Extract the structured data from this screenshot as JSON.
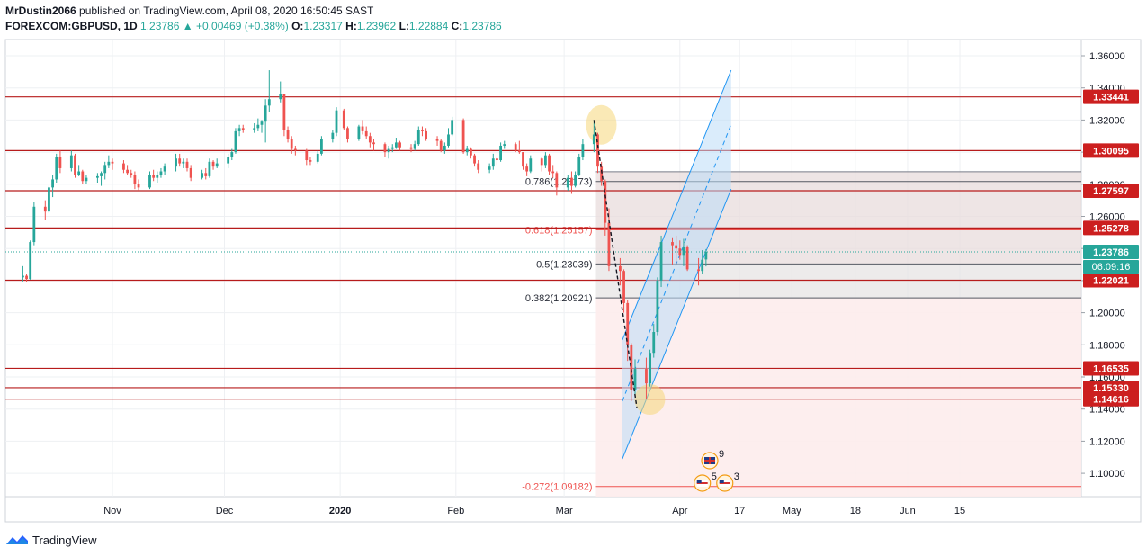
{
  "header": {
    "author": "MrDustin2066",
    "published": "published on TradingView.com, April 08, 2020 16:50:45 SAST",
    "ticker": "FOREXCOM:GBPUSD, 1D",
    "last": "1.23786",
    "change_arrow": "▲",
    "change": "+0.00469 (+0.38%)",
    "o_label": "O:",
    "o": "1.23317",
    "h_label": "H:",
    "h": "1.23962",
    "l_label": "L:",
    "l": "1.22884",
    "c_label": "C:",
    "c": "1.23786"
  },
  "footer": {
    "brand": "TradingView",
    "icon": "tradingview-logo-icon"
  },
  "colors": {
    "up": "#26a69a",
    "down": "#ef5350",
    "level_line": "#b71c1c",
    "level_box": "#cc1f1f",
    "channel": "#2196f3",
    "highlight": "#f5d77a",
    "fib_shade": "#fdecec",
    "fib_shade_dark": "#e8dcdc",
    "grid": "#eef0f3"
  },
  "chart_data": {
    "type": "candlestick",
    "symbol": "FOREXCOM:GBPUSD",
    "timeframe": "1D",
    "ylim": [
      1.085,
      1.372
    ],
    "x_ticks": [
      "Nov",
      "Dec",
      "2020",
      "Feb",
      "Mar",
      "Apr",
      "17",
      "May",
      "18",
      "Jun",
      "15"
    ],
    "x_tick_dates": [
      "2019-11-01",
      "2019-12-01",
      "2020-01-01",
      "2020-02-01",
      "2020-03-01",
      "2020-04-01",
      "2020-04-17",
      "2020-05-01",
      "2020-05-18",
      "2020-06-01",
      "2020-06-15"
    ],
    "y_ticks": [
      "1.36000",
      "1.34000",
      "1.32000",
      "1.30000",
      "1.28000",
      "1.26000",
      "1.24000",
      "1.22000",
      "1.20000",
      "1.18000",
      "1.16000",
      "1.14000",
      "1.12000",
      "1.10000"
    ],
    "horizontal_levels": [
      "1.33441",
      "1.30095",
      "1.27597",
      "1.25278",
      "1.22021",
      "1.16535",
      "1.15330",
      "1.14616"
    ],
    "last_price": "1.23786",
    "countdown": "06:09:16",
    "fibonacci": [
      {
        "label": "0.786(1.28173)",
        "value": 1.28173
      },
      {
        "label": "0.618(1.25157)",
        "value": 1.25157
      },
      {
        "label": "0.5(1.23039)",
        "value": 1.23039
      },
      {
        "label": "0.382(1.20921)",
        "value": 1.20921
      },
      {
        "label": "-0.272(1.09182)",
        "value": 1.09182
      }
    ],
    "events": [
      {
        "flag": "uk-flag-icon",
        "count": "9"
      },
      {
        "flag": "us-flag-icon",
        "count": "5"
      },
      {
        "flag": "us-flag-icon",
        "count": "3"
      }
    ],
    "candles": [
      {
        "d": "2019-10-08",
        "o": 1.222,
        "h": 1.229,
        "l": 1.2195,
        "c": 1.223
      },
      {
        "d": "2019-10-09",
        "o": 1.223,
        "h": 1.224,
        "l": 1.219,
        "c": 1.221
      },
      {
        "d": "2019-10-10",
        "o": 1.221,
        "h": 1.245,
        "l": 1.2205,
        "c": 1.244
      },
      {
        "d": "2019-10-11",
        "o": 1.244,
        "h": 1.269,
        "l": 1.242,
        "c": 1.266
      },
      {
        "d": "2019-10-14",
        "o": 1.266,
        "h": 1.27,
        "l": 1.258,
        "c": 1.263
      },
      {
        "d": "2019-10-15",
        "o": 1.263,
        "h": 1.279,
        "l": 1.262,
        "c": 1.278
      },
      {
        "d": "2019-10-16",
        "o": 1.278,
        "h": 1.286,
        "l": 1.272,
        "c": 1.283
      },
      {
        "d": "2019-10-17",
        "o": 1.283,
        "h": 1.299,
        "l": 1.281,
        "c": 1.297
      },
      {
        "d": "2019-10-18",
        "o": 1.297,
        "h": 1.301,
        "l": 1.287,
        "c": 1.29
      },
      {
        "d": "2019-10-21",
        "o": 1.29,
        "h": 1.301,
        "l": 1.288,
        "c": 1.298
      },
      {
        "d": "2019-10-22",
        "o": 1.298,
        "h": 1.299,
        "l": 1.284,
        "c": 1.286
      },
      {
        "d": "2019-10-23",
        "o": 1.286,
        "h": 1.292,
        "l": 1.285,
        "c": 1.288
      },
      {
        "d": "2019-10-24",
        "o": 1.288,
        "h": 1.289,
        "l": 1.28,
        "c": 1.282
      },
      {
        "d": "2019-10-25",
        "o": 1.282,
        "h": 1.286,
        "l": 1.28,
        "c": 1.284
      },
      {
        "d": "2019-10-28",
        "o": 1.284,
        "h": 1.287,
        "l": 1.281,
        "c": 1.285
      },
      {
        "d": "2019-10-29",
        "o": 1.285,
        "h": 1.288,
        "l": 1.279,
        "c": 1.287
      },
      {
        "d": "2019-10-30",
        "o": 1.287,
        "h": 1.294,
        "l": 1.283,
        "c": 1.292
      },
      {
        "d": "2019-10-31",
        "o": 1.292,
        "h": 1.298,
        "l": 1.29,
        "c": 1.294
      },
      {
        "d": "2019-11-01",
        "o": 1.294,
        "h": 1.296,
        "l": 1.289,
        "c": 1.293
      },
      {
        "d": "2019-11-04",
        "o": 1.293,
        "h": 1.295,
        "l": 1.287,
        "c": 1.289
      },
      {
        "d": "2019-11-05",
        "o": 1.289,
        "h": 1.292,
        "l": 1.286,
        "c": 1.287
      },
      {
        "d": "2019-11-06",
        "o": 1.287,
        "h": 1.289,
        "l": 1.284,
        "c": 1.286
      },
      {
        "d": "2019-11-07",
        "o": 1.286,
        "h": 1.288,
        "l": 1.277,
        "c": 1.28
      },
      {
        "d": "2019-11-08",
        "o": 1.28,
        "h": 1.283,
        "l": 1.276,
        "c": 1.278
      },
      {
        "d": "2019-11-11",
        "o": 1.278,
        "h": 1.288,
        "l": 1.277,
        "c": 1.286
      },
      {
        "d": "2019-11-12",
        "o": 1.286,
        "h": 1.289,
        "l": 1.282,
        "c": 1.284
      },
      {
        "d": "2019-11-13",
        "o": 1.284,
        "h": 1.288,
        "l": 1.281,
        "c": 1.286
      },
      {
        "d": "2019-11-14",
        "o": 1.286,
        "h": 1.29,
        "l": 1.284,
        "c": 1.288
      },
      {
        "d": "2019-11-15",
        "o": 1.288,
        "h": 1.293,
        "l": 1.286,
        "c": 1.291
      },
      {
        "d": "2019-11-18",
        "o": 1.291,
        "h": 1.299,
        "l": 1.288,
        "c": 1.296
      },
      {
        "d": "2019-11-19",
        "o": 1.296,
        "h": 1.299,
        "l": 1.291,
        "c": 1.293
      },
      {
        "d": "2019-11-20",
        "o": 1.293,
        "h": 1.296,
        "l": 1.29,
        "c": 1.294
      },
      {
        "d": "2019-11-21",
        "o": 1.294,
        "h": 1.296,
        "l": 1.288,
        "c": 1.29
      },
      {
        "d": "2019-11-22",
        "o": 1.29,
        "h": 1.292,
        "l": 1.282,
        "c": 1.284
      },
      {
        "d": "2019-11-25",
        "o": 1.284,
        "h": 1.289,
        "l": 1.283,
        "c": 1.287
      },
      {
        "d": "2019-11-26",
        "o": 1.287,
        "h": 1.29,
        "l": 1.283,
        "c": 1.285
      },
      {
        "d": "2019-11-27",
        "o": 1.285,
        "h": 1.296,
        "l": 1.284,
        "c": 1.294
      },
      {
        "d": "2019-11-28",
        "o": 1.294,
        "h": 1.295,
        "l": 1.289,
        "c": 1.291
      },
      {
        "d": "2019-11-29",
        "o": 1.291,
        "h": 1.296,
        "l": 1.29,
        "c": 1.293
      },
      {
        "d": "2019-12-02",
        "o": 1.293,
        "h": 1.299,
        "l": 1.29,
        "c": 1.297
      },
      {
        "d": "2019-12-03",
        "o": 1.297,
        "h": 1.302,
        "l": 1.295,
        "c": 1.3
      },
      {
        "d": "2019-12-04",
        "o": 1.3,
        "h": 1.315,
        "l": 1.299,
        "c": 1.313
      },
      {
        "d": "2019-12-05",
        "o": 1.313,
        "h": 1.317,
        "l": 1.31,
        "c": 1.315
      },
      {
        "d": "2019-12-06",
        "o": 1.315,
        "h": 1.317,
        "l": 1.312,
        "c": 1.314
      },
      {
        "d": "2019-12-09",
        "o": 1.314,
        "h": 1.318,
        "l": 1.312,
        "c": 1.315
      },
      {
        "d": "2019-12-10",
        "o": 1.315,
        "h": 1.321,
        "l": 1.313,
        "c": 1.317
      },
      {
        "d": "2019-12-11",
        "o": 1.317,
        "h": 1.32,
        "l": 1.312,
        "c": 1.319
      },
      {
        "d": "2019-12-12",
        "o": 1.319,
        "h": 1.333,
        "l": 1.306,
        "c": 1.329
      },
      {
        "d": "2019-12-13",
        "o": 1.329,
        "h": 1.351,
        "l": 1.325,
        "c": 1.333
      },
      {
        "d": "2019-12-16",
        "o": 1.333,
        "h": 1.344,
        "l": 1.331,
        "c": 1.336
      },
      {
        "d": "2019-12-17",
        "o": 1.336,
        "h": 1.336,
        "l": 1.31,
        "c": 1.314
      },
      {
        "d": "2019-12-18",
        "o": 1.314,
        "h": 1.316,
        "l": 1.306,
        "c": 1.308
      },
      {
        "d": "2019-12-19",
        "o": 1.308,
        "h": 1.31,
        "l": 1.299,
        "c": 1.302
      },
      {
        "d": "2019-12-20",
        "o": 1.302,
        "h": 1.304,
        "l": 1.298,
        "c": 1.301
      },
      {
        "d": "2019-12-23",
        "o": 1.301,
        "h": 1.302,
        "l": 1.292,
        "c": 1.295
      },
      {
        "d": "2019-12-24",
        "o": 1.295,
        "h": 1.297,
        "l": 1.292,
        "c": 1.294
      },
      {
        "d": "2019-12-26",
        "o": 1.294,
        "h": 1.301,
        "l": 1.293,
        "c": 1.299
      },
      {
        "d": "2019-12-27",
        "o": 1.299,
        "h": 1.31,
        "l": 1.298,
        "c": 1.308
      },
      {
        "d": "2019-12-30",
        "o": 1.308,
        "h": 1.314,
        "l": 1.306,
        "c": 1.312
      },
      {
        "d": "2019-12-31",
        "o": 1.312,
        "h": 1.328,
        "l": 1.31,
        "c": 1.326
      },
      {
        "d": "2020-01-02",
        "o": 1.326,
        "h": 1.327,
        "l": 1.314,
        "c": 1.315
      },
      {
        "d": "2020-01-03",
        "o": 1.315,
        "h": 1.316,
        "l": 1.306,
        "c": 1.308
      },
      {
        "d": "2020-01-06",
        "o": 1.308,
        "h": 1.317,
        "l": 1.307,
        "c": 1.316
      },
      {
        "d": "2020-01-07",
        "o": 1.316,
        "h": 1.32,
        "l": 1.311,
        "c": 1.313
      },
      {
        "d": "2020-01-08",
        "o": 1.313,
        "h": 1.316,
        "l": 1.308,
        "c": 1.31
      },
      {
        "d": "2020-01-09",
        "o": 1.31,
        "h": 1.312,
        "l": 1.303,
        "c": 1.306
      },
      {
        "d": "2020-01-10",
        "o": 1.306,
        "h": 1.308,
        "l": 1.301,
        "c": 1.305
      },
      {
        "d": "2020-01-13",
        "o": 1.305,
        "h": 1.306,
        "l": 1.297,
        "c": 1.3
      },
      {
        "d": "2020-01-14",
        "o": 1.3,
        "h": 1.304,
        "l": 1.296,
        "c": 1.302
      },
      {
        "d": "2020-01-15",
        "o": 1.302,
        "h": 1.305,
        "l": 1.3,
        "c": 1.303
      },
      {
        "d": "2020-01-16",
        "o": 1.303,
        "h": 1.309,
        "l": 1.302,
        "c": 1.306
      },
      {
        "d": "2020-01-17",
        "o": 1.306,
        "h": 1.307,
        "l": 1.301,
        "c": 1.303
      },
      {
        "d": "2020-01-20",
        "o": 1.303,
        "h": 1.305,
        "l": 1.3,
        "c": 1.302
      },
      {
        "d": "2020-01-21",
        "o": 1.302,
        "h": 1.307,
        "l": 1.301,
        "c": 1.305
      },
      {
        "d": "2020-01-22",
        "o": 1.305,
        "h": 1.316,
        "l": 1.304,
        "c": 1.314
      },
      {
        "d": "2020-01-23",
        "o": 1.314,
        "h": 1.316,
        "l": 1.31,
        "c": 1.313
      },
      {
        "d": "2020-01-24",
        "o": 1.313,
        "h": 1.315,
        "l": 1.307,
        "c": 1.308
      },
      {
        "d": "2020-01-27",
        "o": 1.308,
        "h": 1.31,
        "l": 1.304,
        "c": 1.307
      },
      {
        "d": "2020-01-28",
        "o": 1.307,
        "h": 1.308,
        "l": 1.3,
        "c": 1.301
      },
      {
        "d": "2020-01-29",
        "o": 1.301,
        "h": 1.306,
        "l": 1.299,
        "c": 1.304
      },
      {
        "d": "2020-01-30",
        "o": 1.304,
        "h": 1.315,
        "l": 1.303,
        "c": 1.311
      },
      {
        "d": "2020-01-31",
        "o": 1.311,
        "h": 1.322,
        "l": 1.31,
        "c": 1.32
      },
      {
        "d": "2020-02-03",
        "o": 1.32,
        "h": 1.321,
        "l": 1.299,
        "c": 1.3
      },
      {
        "d": "2020-02-04",
        "o": 1.3,
        "h": 1.304,
        "l": 1.298,
        "c": 1.302
      },
      {
        "d": "2020-02-05",
        "o": 1.302,
        "h": 1.303,
        "l": 1.296,
        "c": 1.298
      },
      {
        "d": "2020-02-06",
        "o": 1.298,
        "h": 1.299,
        "l": 1.291,
        "c": 1.293
      },
      {
        "d": "2020-02-07",
        "o": 1.293,
        "h": 1.295,
        "l": 1.287,
        "c": 1.289
      },
      {
        "d": "2020-02-10",
        "o": 1.289,
        "h": 1.293,
        "l": 1.287,
        "c": 1.291
      },
      {
        "d": "2020-02-11",
        "o": 1.291,
        "h": 1.299,
        "l": 1.289,
        "c": 1.296
      },
      {
        "d": "2020-02-12",
        "o": 1.296,
        "h": 1.297,
        "l": 1.292,
        "c": 1.295
      },
      {
        "d": "2020-02-13",
        "o": 1.295,
        "h": 1.306,
        "l": 1.294,
        "c": 1.304
      },
      {
        "d": "2020-02-14",
        "o": 1.304,
        "h": 1.307,
        "l": 1.302,
        "c": 1.305
      },
      {
        "d": "2020-02-17",
        "o": 1.305,
        "h": 1.306,
        "l": 1.3,
        "c": 1.301
      },
      {
        "d": "2020-02-18",
        "o": 1.301,
        "h": 1.307,
        "l": 1.299,
        "c": 1.3
      },
      {
        "d": "2020-02-19",
        "o": 1.3,
        "h": 1.3,
        "l": 1.289,
        "c": 1.291
      },
      {
        "d": "2020-02-20",
        "o": 1.291,
        "h": 1.293,
        "l": 1.285,
        "c": 1.288
      },
      {
        "d": "2020-02-21",
        "o": 1.288,
        "h": 1.298,
        "l": 1.287,
        "c": 1.296
      },
      {
        "d": "2020-02-24",
        "o": 1.296,
        "h": 1.297,
        "l": 1.288,
        "c": 1.292
      },
      {
        "d": "2020-02-25",
        "o": 1.292,
        "h": 1.3,
        "l": 1.29,
        "c": 1.298
      },
      {
        "d": "2020-02-26",
        "o": 1.298,
        "h": 1.299,
        "l": 1.286,
        "c": 1.288
      },
      {
        "d": "2020-02-27",
        "o": 1.288,
        "h": 1.292,
        "l": 1.284,
        "c": 1.287
      },
      {
        "d": "2020-02-28",
        "o": 1.287,
        "h": 1.288,
        "l": 1.273,
        "c": 1.278
      },
      {
        "d": "2020-03-02",
        "o": 1.278,
        "h": 1.286,
        "l": 1.276,
        "c": 1.284
      },
      {
        "d": "2020-03-03",
        "o": 1.284,
        "h": 1.288,
        "l": 1.274,
        "c": 1.279
      },
      {
        "d": "2020-03-04",
        "o": 1.279,
        "h": 1.288,
        "l": 1.278,
        "c": 1.286
      },
      {
        "d": "2020-03-05",
        "o": 1.286,
        "h": 1.299,
        "l": 1.285,
        "c": 1.297
      },
      {
        "d": "2020-03-06",
        "o": 1.297,
        "h": 1.308,
        "l": 1.295,
        "c": 1.305
      },
      {
        "d": "2020-03-09",
        "o": 1.305,
        "h": 1.32,
        "l": 1.3,
        "c": 1.311
      },
      {
        "d": "2020-03-10",
        "o": 1.311,
        "h": 1.312,
        "l": 1.287,
        "c": 1.291
      },
      {
        "d": "2020-03-11",
        "o": 1.291,
        "h": 1.294,
        "l": 1.279,
        "c": 1.282
      },
      {
        "d": "2020-03-12",
        "o": 1.282,
        "h": 1.283,
        "l": 1.248,
        "c": 1.256
      },
      {
        "d": "2020-03-13",
        "o": 1.256,
        "h": 1.265,
        "l": 1.226,
        "c": 1.229
      },
      {
        "d": "2020-03-16",
        "o": 1.229,
        "h": 1.234,
        "l": 1.217,
        "c": 1.226
      },
      {
        "d": "2020-03-17",
        "o": 1.226,
        "h": 1.227,
        "l": 1.2,
        "c": 1.206
      },
      {
        "d": "2020-03-18",
        "o": 1.206,
        "h": 1.208,
        "l": 1.17,
        "c": 1.18
      },
      {
        "d": "2020-03-19",
        "o": 1.18,
        "h": 1.181,
        "l": 1.145,
        "c": 1.152
      },
      {
        "d": "2020-03-20",
        "o": 1.152,
        "h": 1.171,
        "l": 1.148,
        "c": 1.165
      },
      {
        "d": "2020-03-23",
        "o": 1.165,
        "h": 1.172,
        "l": 1.146,
        "c": 1.156
      },
      {
        "d": "2020-03-24",
        "o": 1.156,
        "h": 1.177,
        "l": 1.154,
        "c": 1.175
      },
      {
        "d": "2020-03-25",
        "o": 1.175,
        "h": 1.193,
        "l": 1.172,
        "c": 1.188
      },
      {
        "d": "2020-03-26",
        "o": 1.188,
        "h": 1.222,
        "l": 1.186,
        "c": 1.22
      },
      {
        "d": "2020-03-27",
        "o": 1.22,
        "h": 1.248,
        "l": 1.216,
        "c": 1.244
      },
      {
        "d": "2020-03-30",
        "o": 1.244,
        "h": 1.247,
        "l": 1.23,
        "c": 1.242
      },
      {
        "d": "2020-03-31",
        "o": 1.242,
        "h": 1.248,
        "l": 1.23,
        "c": 1.24
      },
      {
        "d": "2020-04-01",
        "o": 1.24,
        "h": 1.245,
        "l": 1.233,
        "c": 1.236
      },
      {
        "d": "2020-04-02",
        "o": 1.236,
        "h": 1.246,
        "l": 1.229,
        "c": 1.241
      },
      {
        "d": "2020-04-03",
        "o": 1.241,
        "h": 1.242,
        "l": 1.226,
        "c": 1.227
      },
      {
        "d": "2020-04-06",
        "o": 1.227,
        "h": 1.234,
        "l": 1.217,
        "c": 1.226
      },
      {
        "d": "2020-04-07",
        "o": 1.226,
        "h": 1.239,
        "l": 1.224,
        "c": 1.233
      },
      {
        "d": "2020-04-08",
        "o": 1.23317,
        "h": 1.23962,
        "l": 1.22884,
        "c": 1.23786
      }
    ]
  }
}
